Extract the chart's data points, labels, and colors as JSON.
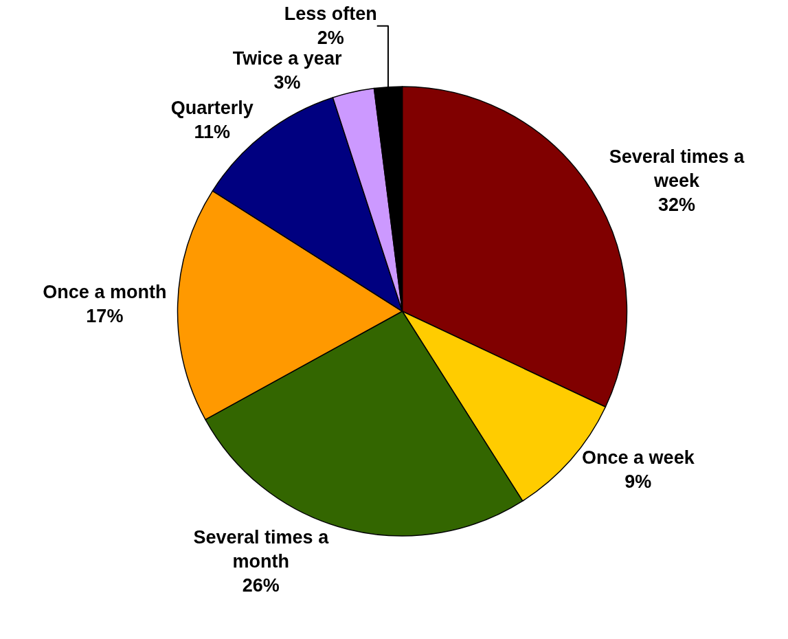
{
  "chart_data": {
    "type": "pie",
    "categories": [
      "Several times a week",
      "Once a week",
      "Several times a month",
      "Once a month",
      "Quarterly",
      "Twice a year",
      "Less often"
    ],
    "values": [
      32,
      9,
      26,
      17,
      11,
      3,
      2
    ],
    "value_labels": [
      "32%",
      "9%",
      "26%",
      "17%",
      "11%",
      "3%",
      "2%"
    ],
    "colors": [
      "#800000",
      "#ffcc00",
      "#336600",
      "#ff9900",
      "#000080",
      "#cc99ff",
      "#000000"
    ],
    "legend": false
  }
}
